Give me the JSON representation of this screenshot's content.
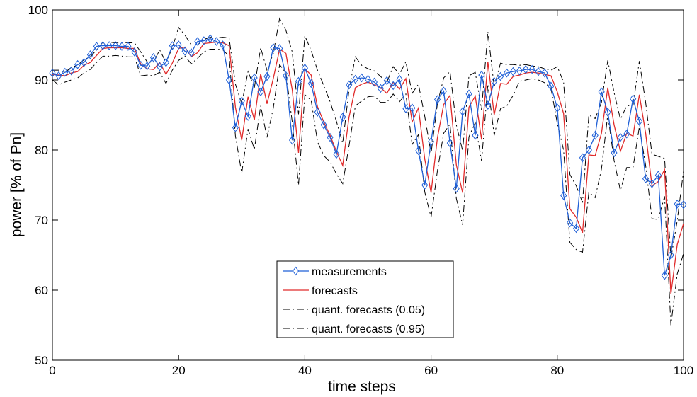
{
  "chart_data": {
    "type": "line",
    "xlabel": "time steps",
    "ylabel": "power [% of Pn]",
    "xlim": [
      0,
      100
    ],
    "ylim": [
      50,
      100
    ],
    "xticks": [
      0,
      20,
      40,
      60,
      80,
      100
    ],
    "yticks": [
      50,
      60,
      70,
      80,
      90,
      100
    ],
    "grid": false,
    "legend_position": "bottom-center",
    "x": [
      0,
      1,
      2,
      3,
      4,
      5,
      6,
      7,
      8,
      9,
      10,
      11,
      12,
      13,
      14,
      15,
      16,
      17,
      18,
      19,
      20,
      21,
      22,
      23,
      24,
      25,
      26,
      27,
      28,
      29,
      30,
      31,
      32,
      33,
      34,
      35,
      36,
      37,
      38,
      39,
      40,
      41,
      42,
      43,
      44,
      45,
      46,
      47,
      48,
      49,
      50,
      51,
      52,
      53,
      54,
      55,
      56,
      57,
      58,
      59,
      60,
      61,
      62,
      63,
      64,
      65,
      66,
      67,
      68,
      69,
      70,
      71,
      72,
      73,
      74,
      75,
      76,
      77,
      78,
      79,
      80,
      81,
      82,
      83,
      84,
      85,
      86,
      87,
      88,
      89,
      90,
      91,
      92,
      93,
      94,
      95,
      96,
      97,
      98,
      99,
      100
    ],
    "series": [
      {
        "name": "measurements",
        "color": "#1f5fd6",
        "style": "solid",
        "marker": "diamond",
        "values": [
          91.0,
          90.6,
          91.1,
          91.3,
          92.2,
          92.5,
          93.6,
          94.8,
          94.9,
          94.9,
          94.9,
          94.8,
          94.8,
          94.0,
          92.1,
          92.0,
          93.2,
          91.9,
          92.5,
          94.9,
          95.0,
          94.1,
          93.9,
          95.5,
          95.6,
          95.9,
          95.5,
          95.0,
          90.0,
          83.2,
          87.0,
          84.8,
          90.3,
          88.3,
          90.5,
          94.6,
          94.5,
          90.6,
          81.4,
          89.8,
          91.7,
          89.5,
          85.4,
          83.6,
          81.8,
          79.4,
          84.7,
          89.3,
          90.1,
          90.3,
          90.1,
          89.7,
          88.8,
          89.9,
          89.2,
          90.1,
          85.9,
          86.0,
          79.9,
          75.0,
          81.2,
          87.2,
          88.4,
          81.0,
          74.5,
          85.5,
          88.0,
          82.1,
          90.7,
          86.4,
          89.8,
          90.5,
          91.0,
          91.2,
          91.3,
          91.5,
          91.5,
          91.2,
          91.0,
          89.1,
          86.0,
          73.5,
          69.6,
          68.8,
          78.9,
          80.0,
          82.1,
          88.3,
          85.4,
          79.6,
          81.8,
          82.3,
          87.3,
          84.1,
          75.9,
          75.2,
          76.4,
          62.1,
          65.0,
          72.3,
          72.2
        ]
      },
      {
        "name": "forecasts",
        "color": "#e02a2a",
        "style": "solid",
        "marker": "none",
        "values": [
          90.8,
          90.7,
          90.6,
          91.0,
          91.2,
          92.1,
          92.5,
          93.5,
          94.5,
          94.6,
          94.6,
          94.6,
          94.5,
          94.5,
          92.3,
          91.6,
          91.5,
          92.5,
          90.8,
          92.4,
          94.5,
          94.7,
          93.3,
          93.9,
          95.2,
          95.3,
          95.4,
          95.3,
          94.9,
          86.1,
          81.4,
          87.6,
          84.3,
          90.9,
          86.6,
          90.2,
          94.4,
          93.8,
          88.6,
          79.6,
          91.6,
          90.7,
          86.2,
          84.0,
          82.1,
          79.8,
          77.8,
          84.7,
          88.9,
          89.4,
          89.7,
          89.3,
          88.9,
          88.1,
          89.7,
          88.7,
          90.2,
          84.0,
          86.0,
          78.7,
          73.9,
          81.7,
          86.5,
          87.8,
          77.9,
          73.9,
          86.1,
          87.7,
          81.5,
          92.6,
          85.0,
          89.5,
          89.4,
          90.5,
          90.7,
          91.0,
          91.1,
          91.0,
          90.8,
          90.6,
          88.3,
          85.2,
          71.6,
          70.4,
          68.2,
          79.3,
          79.2,
          82.4,
          88.9,
          83.6,
          79.8,
          82.4,
          82.0,
          87.9,
          82.4,
          74.9,
          75.5,
          77.2,
          59.4,
          66.5,
          69.5
        ]
      },
      {
        "name": "quant. forecasts (0.05)",
        "color": "#000000",
        "style": "dashdot",
        "marker": "none",
        "values": [
          90.0,
          89.3,
          89.7,
          90.0,
          90.3,
          91.0,
          91.5,
          92.5,
          93.4,
          93.4,
          93.5,
          93.4,
          93.3,
          93.3,
          90.6,
          90.7,
          90.6,
          91.1,
          89.5,
          91.4,
          92.8,
          93.4,
          92.3,
          93.1,
          94.0,
          94.4,
          94.4,
          94.3,
          93.4,
          82.0,
          76.7,
          83.0,
          80.1,
          86.3,
          81.8,
          86.0,
          92.2,
          91.0,
          84.0,
          75.0,
          87.9,
          87.1,
          81.2,
          79.2,
          78.3,
          76.6,
          75.2,
          80.6,
          86.3,
          87.0,
          87.6,
          87.7,
          86.8,
          86.8,
          88.0,
          86.9,
          88.0,
          80.8,
          82.2,
          74.0,
          70.4,
          77.0,
          82.4,
          83.7,
          73.1,
          69.3,
          81.9,
          83.9,
          78.4,
          89.4,
          82.1,
          85.9,
          86.3,
          87.8,
          89.8,
          90.0,
          90.2,
          90.0,
          89.6,
          88.8,
          83.8,
          80.0,
          66.8,
          65.8,
          65.4,
          74.0,
          73.2,
          77.3,
          85.1,
          78.5,
          74.2,
          77.5,
          77.5,
          83.3,
          77.8,
          70.2,
          70.1,
          73.4,
          55.0,
          62.3,
          65.2
        ]
      },
      {
        "name": "quant. forecasts (0.95)",
        "color": "#000000",
        "style": "dashdot",
        "marker": "none",
        "values": [
          91.4,
          91.4,
          91.1,
          91.8,
          92.1,
          92.9,
          93.3,
          94.3,
          95.4,
          95.4,
          95.3,
          95.4,
          95.3,
          95.3,
          94.0,
          92.6,
          92.5,
          94.3,
          92.5,
          94.6,
          97.5,
          96.4,
          95.0,
          95.0,
          95.8,
          96.1,
          96.0,
          96.1,
          96.0,
          89.4,
          86.6,
          91.2,
          88.9,
          94.6,
          91.4,
          93.8,
          98.8,
          97.1,
          94.0,
          85.1,
          96.3,
          94.2,
          91.4,
          89.2,
          86.9,
          84.1,
          81.0,
          88.6,
          93.3,
          92.1,
          91.6,
          91.3,
          90.5,
          89.7,
          91.9,
          90.8,
          92.6,
          88.1,
          89.4,
          84.8,
          79.5,
          86.6,
          90.3,
          91.2,
          83.6,
          79.9,
          90.6,
          91.1,
          85.7,
          96.9,
          89.0,
          92.4,
          92.2,
          92.2,
          92.1,
          92.2,
          92.0,
          91.9,
          91.6,
          91.4,
          91.9,
          89.7,
          76.5,
          74.9,
          72.5,
          85.0,
          84.5,
          86.8,
          92.8,
          88.2,
          84.4,
          86.3,
          86.4,
          92.7,
          86.8,
          79.4,
          79.1,
          78.8,
          64.5,
          69.9,
          77.0
        ]
      }
    ]
  }
}
